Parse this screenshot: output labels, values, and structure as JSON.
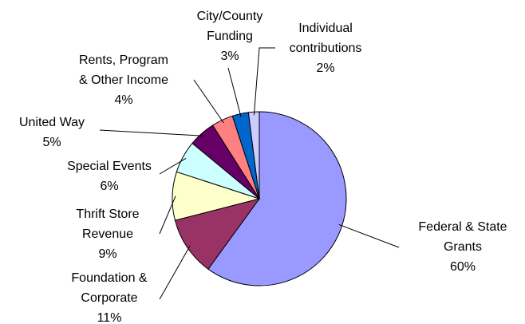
{
  "chart_data": {
    "type": "pie",
    "categories": [
      "Federal & State\nGrants",
      "Foundation &\nCorporate",
      "Thrift Store\nRevenue",
      "Special Events",
      "United Way",
      "Rents, Program\n& Other Income",
      "City/County\nFunding",
      "Individual\ncontributions"
    ],
    "values": [
      60,
      11,
      9,
      6,
      5,
      4,
      3,
      2
    ],
    "value_labels": [
      "60%",
      "11%",
      "9%",
      "6%",
      "5%",
      "4%",
      "3%",
      "2%"
    ],
    "colors": [
      "#9999ff",
      "#993366",
      "#ffffcc",
      "#ccffff",
      "#660066",
      "#ff8080",
      "#0066cc",
      "#ccccff"
    ]
  }
}
